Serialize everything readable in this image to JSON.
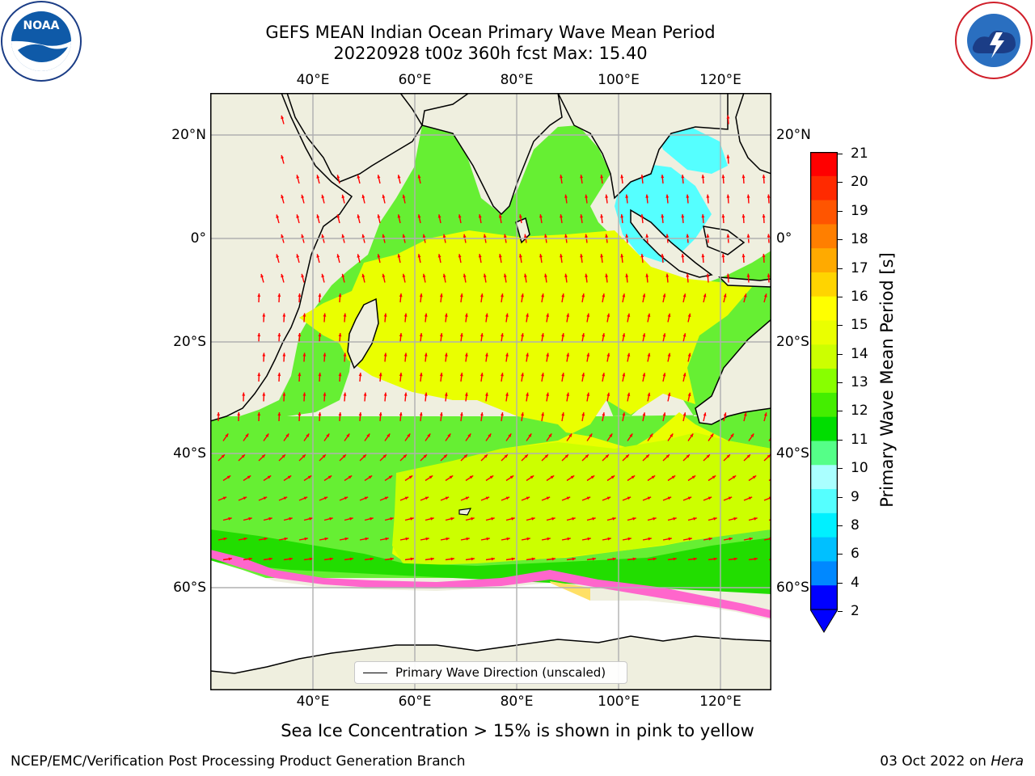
{
  "header": {
    "title_line1": "GEFS MEAN Indian Ocean Primary Wave Mean Period",
    "title_line2": "20220928 t00z 360h fcst   Max: 15.40"
  },
  "logos": {
    "left": "NOAA",
    "right": "NATIONAL WEATHER SERVICE"
  },
  "axes": {
    "lon_ticks": [
      "40°E",
      "60°E",
      "80°E",
      "100°E",
      "120°E"
    ],
    "lat_ticks_left": [
      "20°N",
      "0°",
      "20°S",
      "40°S",
      "60°S"
    ],
    "lat_ticks_right": [
      "20°N",
      "0°",
      "20°S",
      "40°S",
      "60°S"
    ]
  },
  "colorbar": {
    "label": "Primary Wave Mean Period [s]",
    "ticks": [
      "21",
      "20",
      "19",
      "18",
      "17",
      "16",
      "15",
      "14",
      "13",
      "12",
      "11",
      "10",
      "9",
      "8",
      "6",
      "4",
      "2"
    ],
    "colors": [
      "#ff0000",
      "#ff2a00",
      "#ff5500",
      "#ff7f00",
      "#ffaa00",
      "#ffd400",
      "#ffff00",
      "#eaff00",
      "#ccff00",
      "#88ff00",
      "#44ee00",
      "#00dd00",
      "#55ff88",
      "#aaffff",
      "#55ffff",
      "#00f0ff",
      "#00c0ff",
      "#0088ff",
      "#0000ff"
    ],
    "extend": "min"
  },
  "legend": {
    "entry": "Primary Wave Direction (unscaled)"
  },
  "note": "Sea Ice Concentration > 15% is shown in pink to yellow",
  "footer": {
    "left": "NCEP/EMC/Verification Post Processing Product Generation Branch",
    "right_prefix": "03 Oct 2022 on ",
    "right_host": "Hera"
  }
}
